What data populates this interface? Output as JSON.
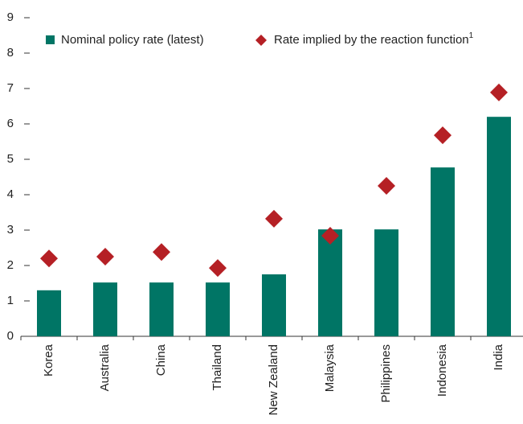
{
  "chart_data": {
    "type": "bar",
    "categories": [
      "Korea",
      "Australia",
      "China",
      "Thailand",
      "New Zealand",
      "Malaysia",
      "Philippines",
      "Indonesia",
      "India"
    ],
    "series": [
      {
        "name": "Nominal policy rate (latest)",
        "type": "bar",
        "color": "#007565",
        "values": [
          1.3,
          1.52,
          1.52,
          1.52,
          1.75,
          3.02,
          3.02,
          4.77,
          6.2
        ]
      },
      {
        "name": "Rate implied by the reaction function",
        "name_superscript": "1",
        "type": "marker",
        "color": "#b52025",
        "values": [
          2.2,
          2.25,
          2.38,
          1.93,
          3.32,
          2.84,
          4.25,
          5.68,
          6.89
        ]
      }
    ],
    "ylim": [
      0,
      9
    ],
    "yticks": [
      0,
      1,
      2,
      3,
      4,
      5,
      6,
      7,
      8,
      9
    ],
    "grid": false,
    "legend": "top"
  }
}
